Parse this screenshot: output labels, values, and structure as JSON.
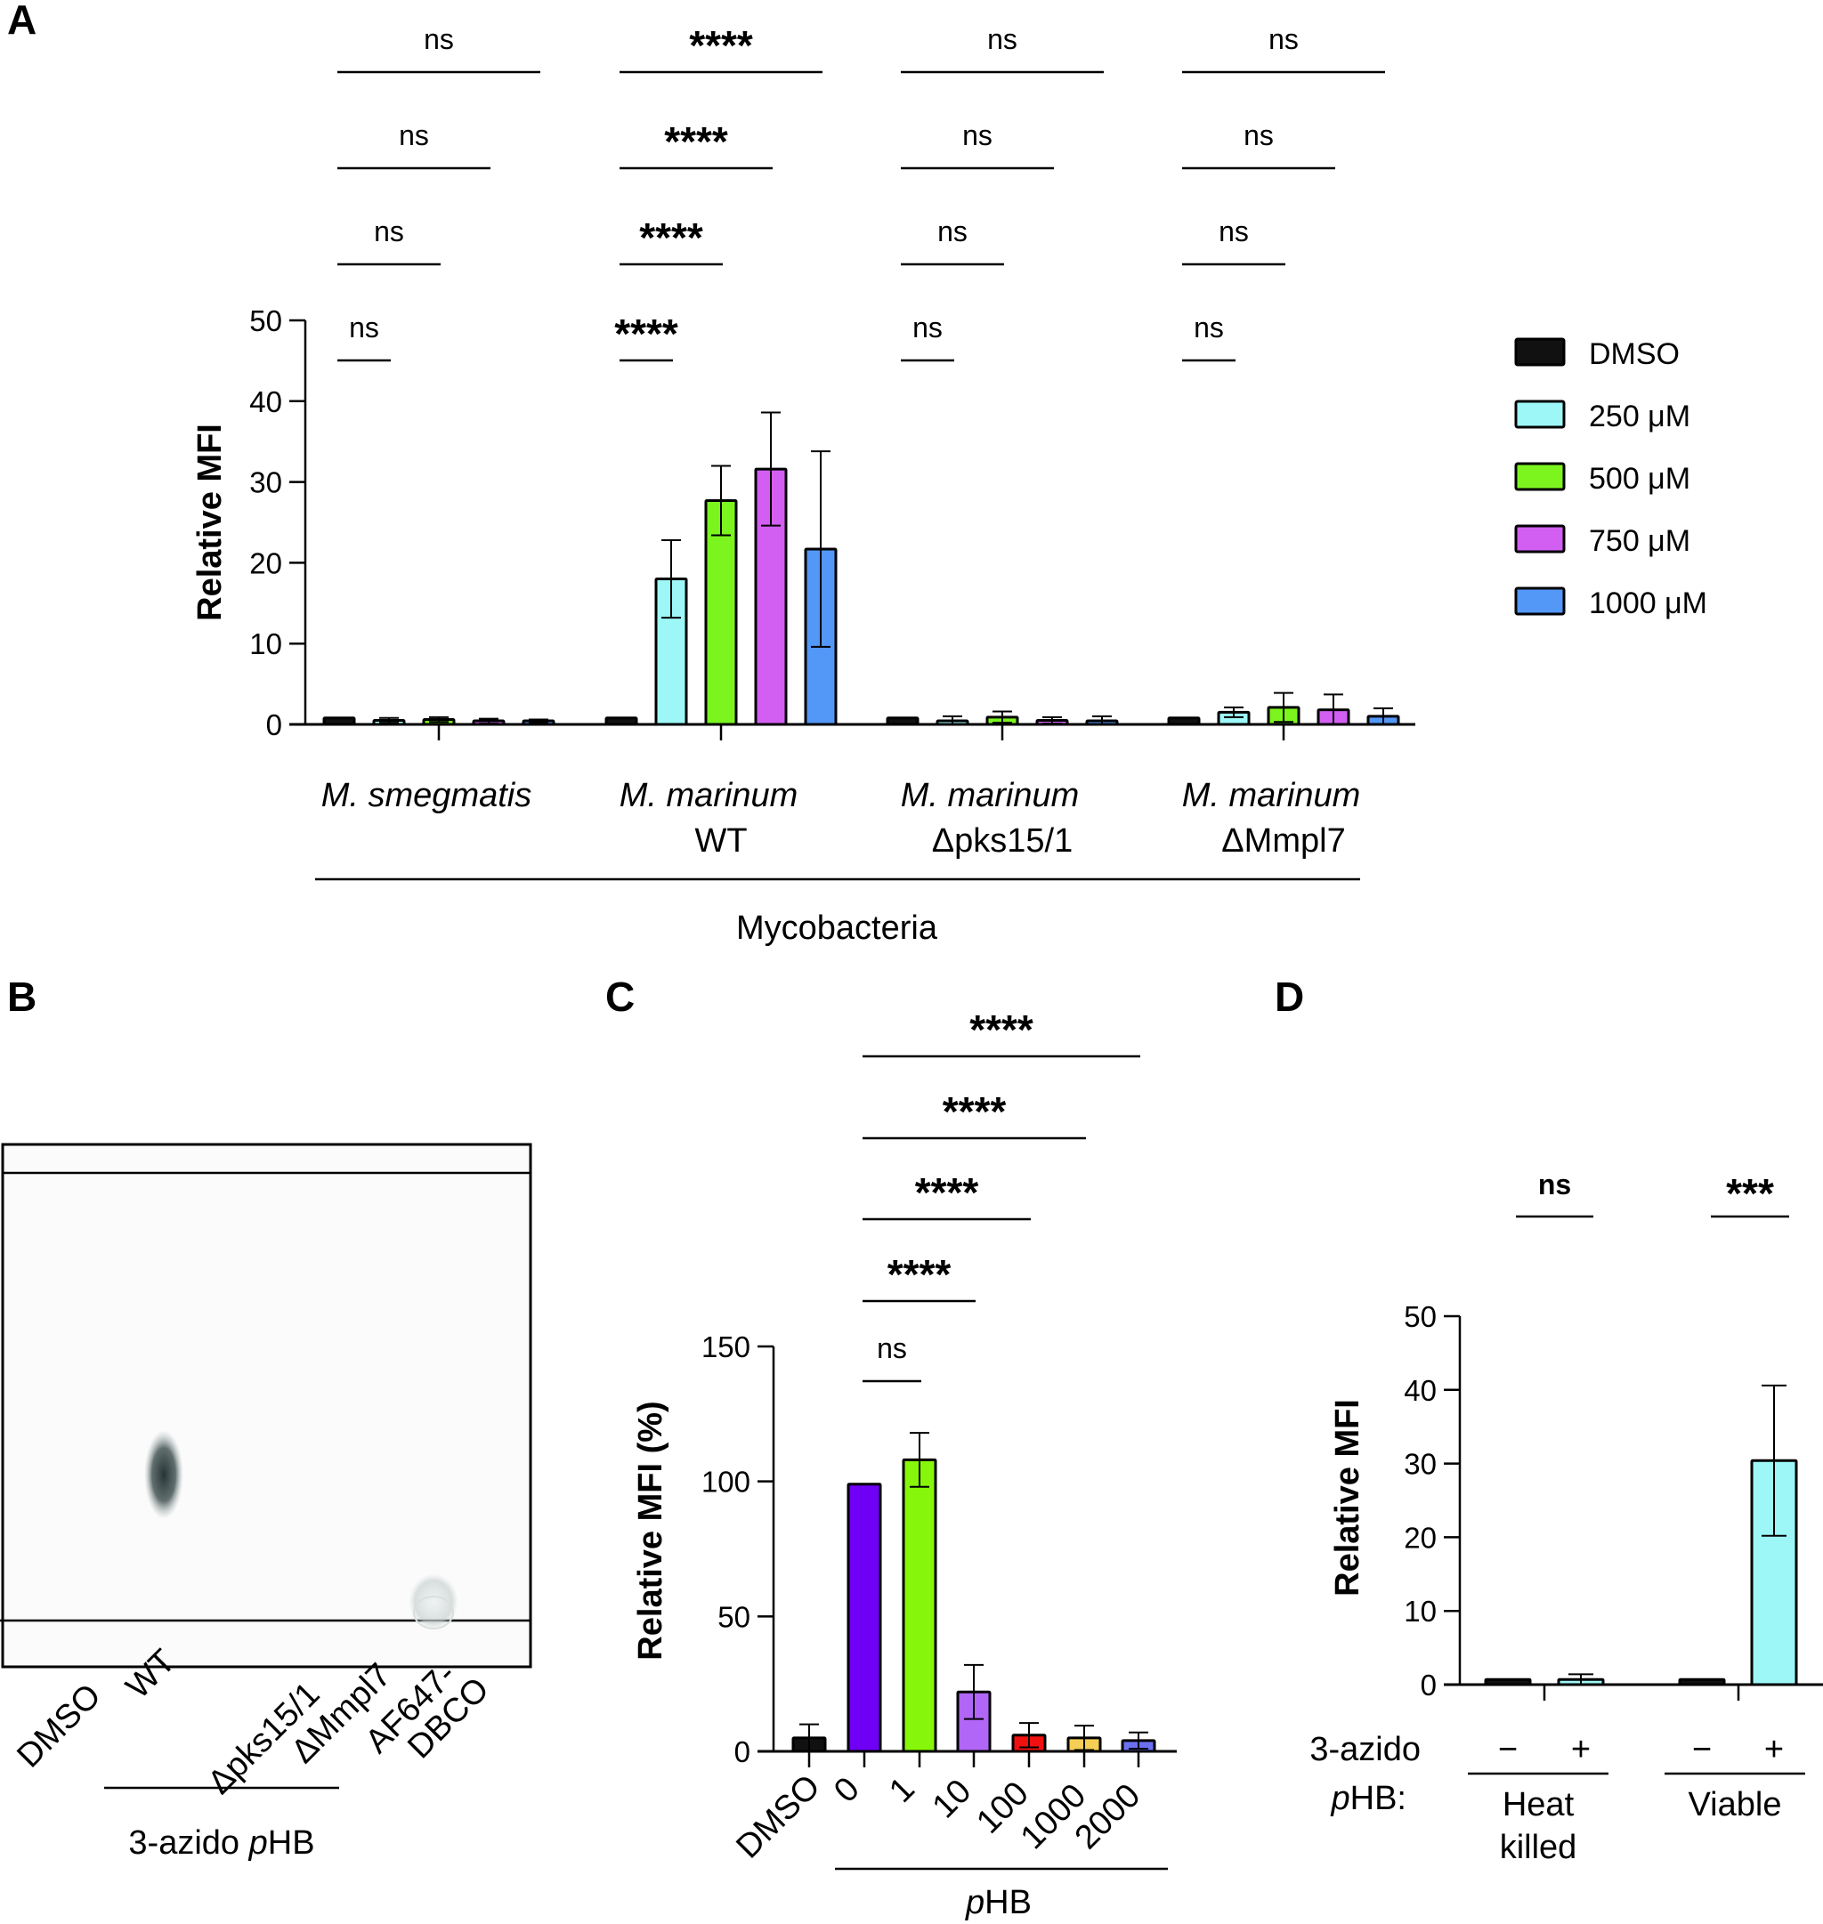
{
  "figure": {
    "panels": [
      "A",
      "B",
      "C",
      "D"
    ]
  },
  "chart_data": [
    {
      "panel": "A",
      "type": "bar",
      "title": "",
      "xlabel": "Mycobacteria",
      "ylabel": "Relative MFI",
      "ylim": [
        0,
        50
      ],
      "yticks": [
        0,
        10,
        20,
        30,
        40,
        50
      ],
      "grid": false,
      "legend_position": "right",
      "categories": [
        {
          "line1": "M. smegmatis",
          "line2": "",
          "italic_line1": true
        },
        {
          "line1": "M. marinum",
          "line2": "WT",
          "italic_line1": true
        },
        {
          "line1": "M. marinum",
          "line2": "Δpks15/1",
          "italic_line1": true
        },
        {
          "line1": "M. marinum",
          "line2": "ΔMmpl7",
          "italic_line1": true
        }
      ],
      "series": [
        {
          "name": "DMSO",
          "color": "#111111",
          "values": [
            0.8,
            0.8,
            0.8,
            0.8
          ],
          "err": [
            0,
            0,
            0,
            0
          ]
        },
        {
          "name": "250  μM",
          "color": "#9ef7f7",
          "values": [
            0.5,
            18.0,
            0.4,
            1.5
          ],
          "err": [
            0.3,
            4.8,
            0.6,
            0.6
          ]
        },
        {
          "name": "500  μM",
          "color": "#7cf51f",
          "values": [
            0.6,
            27.7,
            0.9,
            2.1
          ],
          "err": [
            0.3,
            4.3,
            0.7,
            1.8
          ]
        },
        {
          "name": "750  μM",
          "color": "#d25ff2",
          "values": [
            0.4,
            31.6,
            0.5,
            1.8
          ],
          "err": [
            0.3,
            7.0,
            0.4,
            1.9
          ]
        },
        {
          "name": "1000  μM",
          "color": "#5397f7",
          "values": [
            0.4,
            21.7,
            0.3,
            1.0
          ],
          "err": [
            0.2,
            12.1,
            0.7,
            1.0
          ]
        }
      ],
      "significance": [
        {
          "group": 0,
          "labels": [
            "ns",
            "ns",
            "ns",
            "ns"
          ]
        },
        {
          "group": 1,
          "labels": [
            "****",
            "****",
            "****",
            "****"
          ]
        },
        {
          "group": 2,
          "labels": [
            "ns",
            "ns",
            "ns",
            "ns"
          ]
        },
        {
          "group": 3,
          "labels": [
            "ns",
            "ns",
            "ns",
            "ns"
          ]
        }
      ]
    },
    {
      "panel": "B",
      "type": "gel",
      "lanes": [
        "DMSO",
        "WT",
        "Δpks15/1",
        "ΔMmpl7",
        "AF647-DBCO"
      ],
      "group_label": "3-azido pHB",
      "group_label_parts": {
        "prefix": "3-azido ",
        "italic": "p",
        "suffix": "HB"
      },
      "bands": [
        {
          "lane": "WT",
          "intensity": "strong"
        },
        {
          "lane": "AF647-DBCO",
          "intensity": "faint"
        }
      ]
    },
    {
      "panel": "C",
      "type": "bar",
      "title": "",
      "xlabel": "pHB",
      "xlabel_parts": {
        "italic": "p",
        "suffix": "HB"
      },
      "ylabel": "Relative MFI (%)",
      "ylim": [
        0,
        150
      ],
      "yticks": [
        0,
        50,
        100,
        150
      ],
      "grid": false,
      "categories": [
        "DMSO",
        "0",
        "1",
        "10",
        "100",
        "1000",
        "2000"
      ],
      "colors": [
        "#111111",
        "#7000f5",
        "#86f70a",
        "#b266f7",
        "#f01010",
        "#f5cf55",
        "#6b70f0"
      ],
      "values": [
        5,
        99,
        108,
        22,
        6,
        5,
        4
      ],
      "err": [
        5,
        0,
        10,
        10,
        4.5,
        4.5,
        3
      ],
      "significance": [
        {
          "label": "ns",
          "from": 1,
          "to": 2
        },
        {
          "label": "****",
          "from": 1,
          "to": 3
        },
        {
          "label": "****",
          "from": 1,
          "to": 4
        },
        {
          "label": "****",
          "from": 1,
          "to": 5
        },
        {
          "label": "****",
          "from": 1,
          "to": 6
        }
      ]
    },
    {
      "panel": "D",
      "type": "bar",
      "title": "",
      "ylabel": "Relative MFI",
      "ylim": [
        0,
        50
      ],
      "yticks": [
        0,
        10,
        20,
        30,
        40,
        50
      ],
      "grid": false,
      "row_label_line1": "3-azido",
      "row_label_line2": "pHB:",
      "row_label_line2_parts": {
        "italic": "p",
        "suffix": "HB:"
      },
      "treatment_signs": [
        "−",
        "+",
        "−",
        "+"
      ],
      "groups": [
        {
          "label_line1": "Heat",
          "label_line2": "killed"
        },
        {
          "label_line1": "Viable",
          "label_line2": ""
        }
      ],
      "colors": [
        "#111111",
        "#9ef7f7",
        "#111111",
        "#9ef7f7"
      ],
      "values": [
        0.7,
        0.7,
        0.7,
        30.4
      ],
      "err": [
        0,
        0.7,
        0,
        10.2
      ],
      "significance": [
        {
          "label": "ns",
          "group": 0
        },
        {
          "label": "***",
          "group": 1
        }
      ]
    }
  ]
}
